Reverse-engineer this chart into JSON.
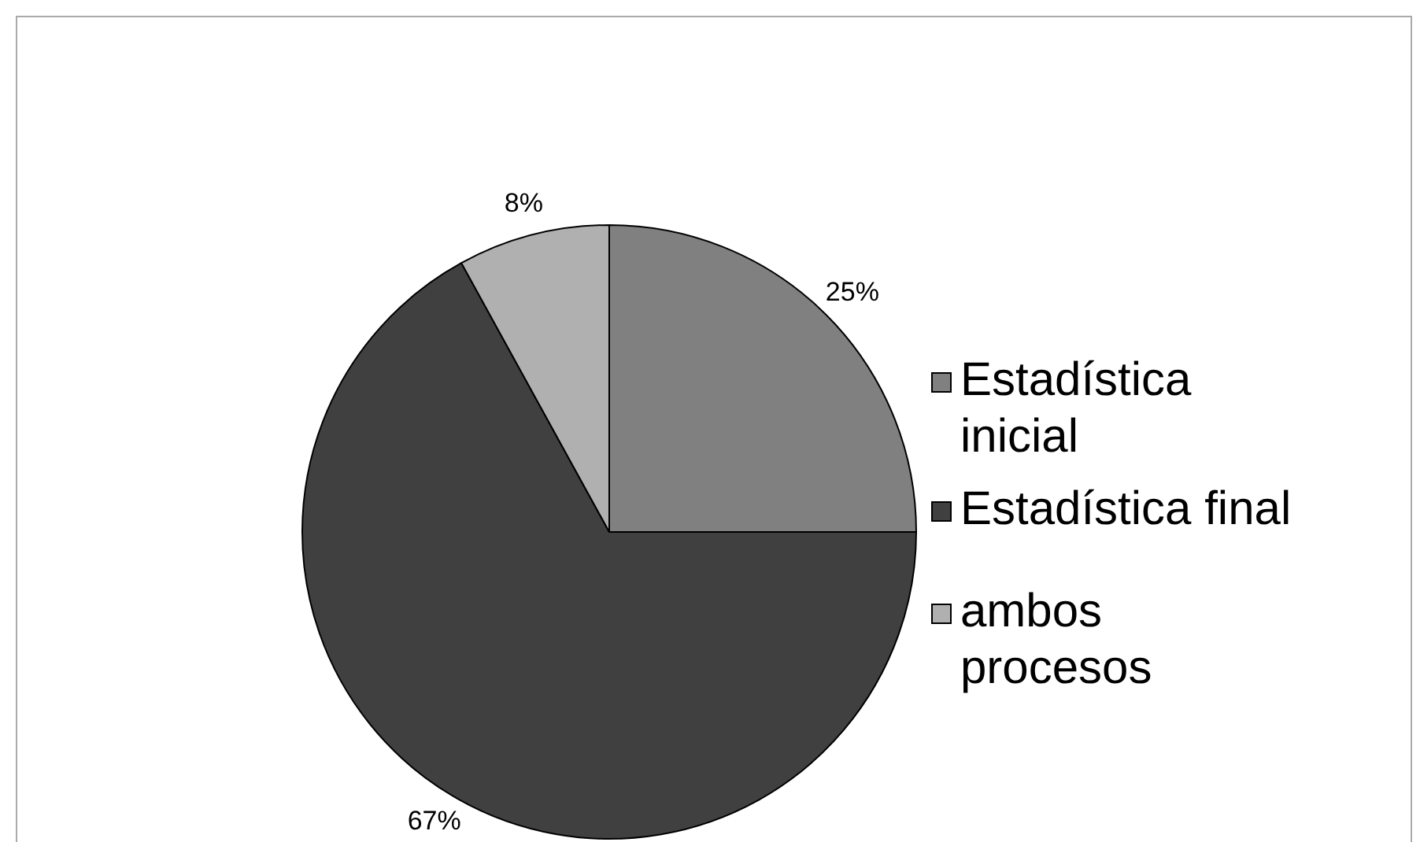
{
  "chart_data": {
    "type": "pie",
    "categories": [
      "Estadística inicial",
      "Estadística final",
      "ambos procesos"
    ],
    "values": [
      25,
      67,
      8
    ],
    "value_labels": [
      "25%",
      "67%",
      "8%"
    ],
    "colors": [
      "#808080",
      "#404040",
      "#b0b0b0"
    ],
    "legend": "right"
  }
}
